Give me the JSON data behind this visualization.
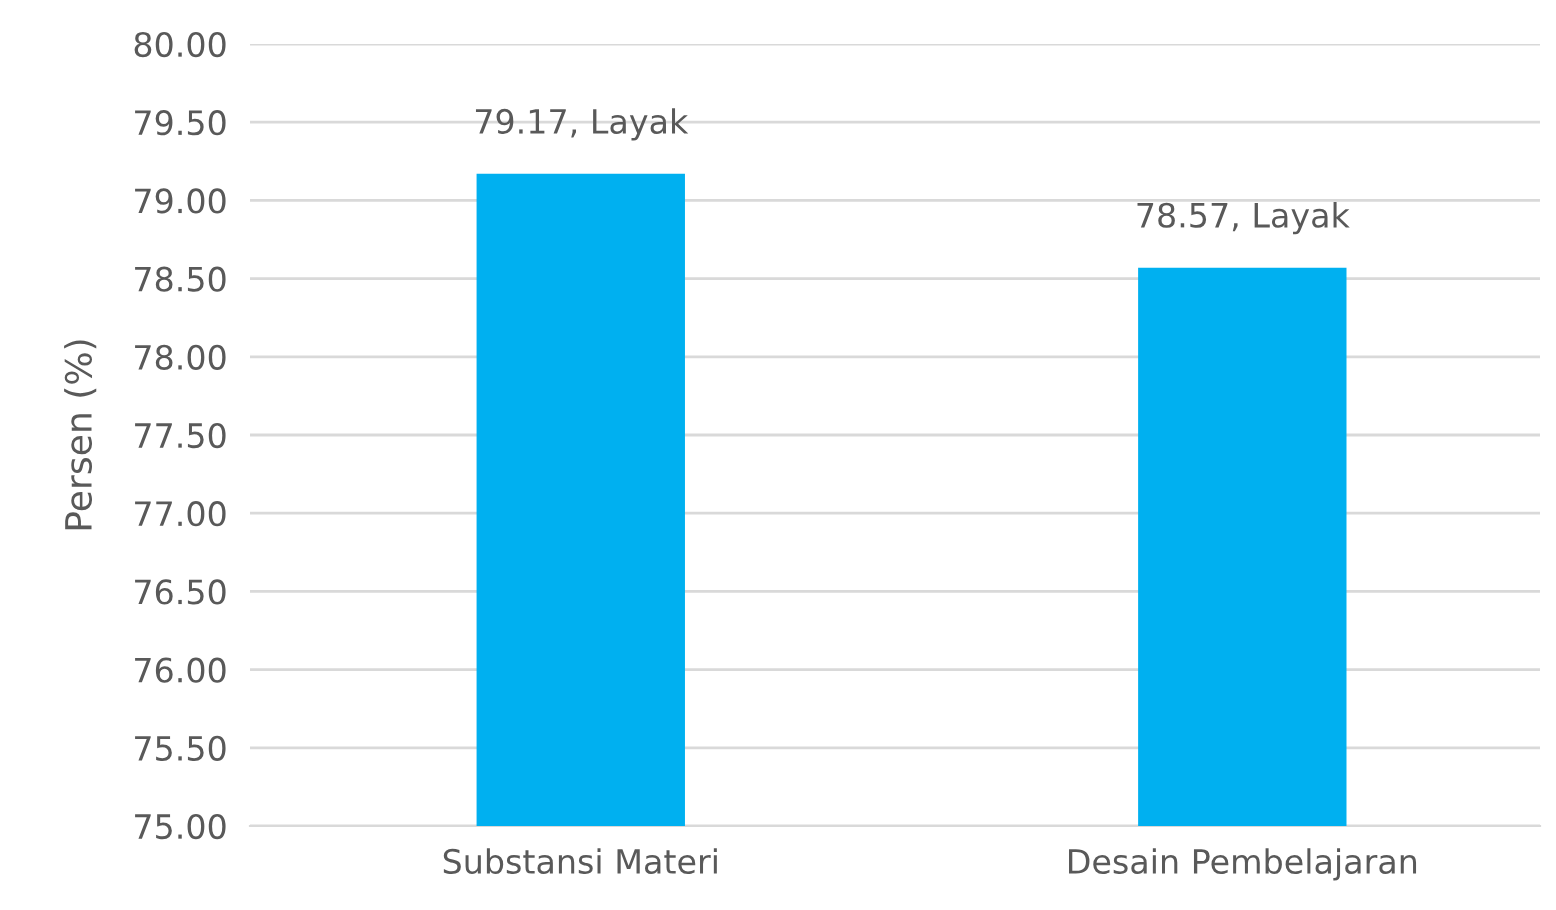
{
  "chart_data": {
    "type": "bar",
    "ylabel": "Persen (%)",
    "categories": [
      "Substansi Materi",
      "Desain Pembelajaran"
    ],
    "values": [
      79.17,
      78.57
    ],
    "value_labels": [
      "79.17, Layak",
      "78.57, Layak"
    ],
    "color": "#00b0f0",
    "ylim": [
      75,
      80
    ],
    "yticks": [
      {
        "value": 75,
        "label": "75.00"
      },
      {
        "value": 75.5,
        "label": "75.50"
      },
      {
        "value": 76,
        "label": "76.00"
      },
      {
        "value": 76.5,
        "label": "76.50"
      },
      {
        "value": 77,
        "label": "77.00"
      },
      {
        "value": 77.5,
        "label": "77.50"
      },
      {
        "value": 78,
        "label": "78.00"
      },
      {
        "value": 78.5,
        "label": "78.50"
      },
      {
        "value": 79,
        "label": "79.00"
      },
      {
        "value": 79.5,
        "label": "79.50"
      },
      {
        "value": 80,
        "label": "80.00"
      }
    ],
    "grid": "y",
    "legend": false
  }
}
